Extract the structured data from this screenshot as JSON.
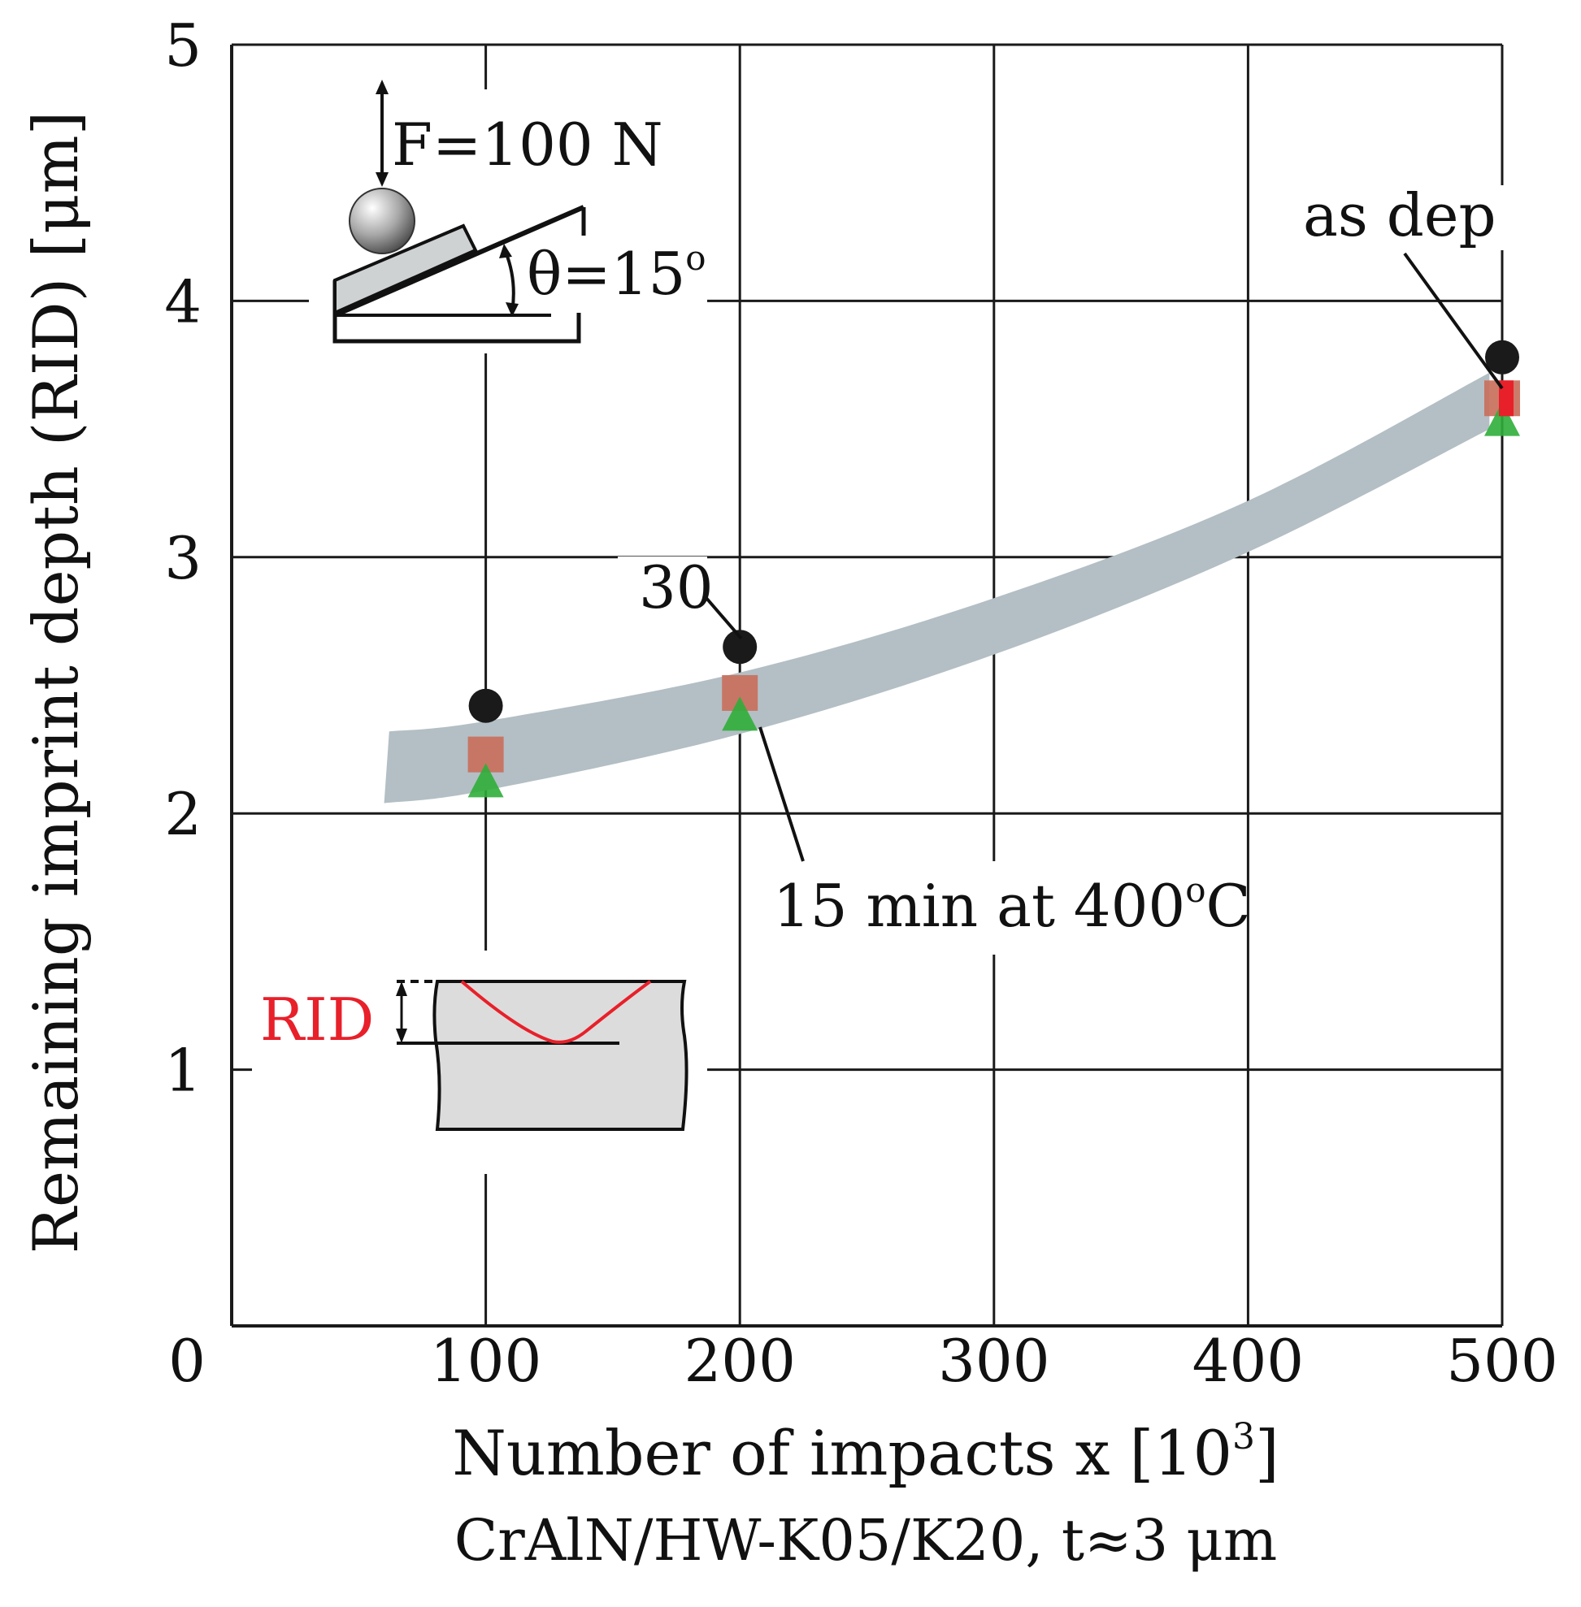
{
  "chart_data": {
    "type": "scatter",
    "title": "",
    "xlabel": "Number of impacts x [10",
    "xlabel_exponent": "3",
    "xlabel_close": "]",
    "ylabel": "Remaining imprint depth (RID) [μm]",
    "subtitle": "CrAlN/HW-K05/K20, t≈3 μm",
    "xlim": [
      0,
      500
    ],
    "ylim": [
      0,
      5
    ],
    "x_origin_label": "0",
    "x_ticks": [
      100,
      200,
      300,
      400,
      500
    ],
    "y_ticks": [
      1,
      2,
      3,
      4,
      5
    ],
    "grid": true,
    "series": [
      {
        "name": "as dep",
        "marker": "circle",
        "color": "#1a1a1a",
        "points": [
          {
            "x": 100,
            "y": 2.42
          },
          {
            "x": 200,
            "y": 2.65
          },
          {
            "x": 500,
            "y": 3.78
          }
        ]
      },
      {
        "name": "30",
        "marker": "square",
        "color": "#c9705c",
        "points": [
          {
            "x": 100,
            "y": 2.23
          },
          {
            "x": 200,
            "y": 2.47
          },
          {
            "x": 500,
            "y": 3.62
          }
        ]
      },
      {
        "name": "15 min at 400°C",
        "marker": "triangle",
        "color": "#2fae3a",
        "points": [
          {
            "x": 100,
            "y": 2.12
          },
          {
            "x": 200,
            "y": 2.38
          },
          {
            "x": 500,
            "y": 3.53
          }
        ]
      }
    ],
    "band": {
      "color": "#b3bfc4",
      "upper": [
        {
          "x": 62,
          "y": 2.32
        },
        {
          "x": 100,
          "y": 2.36
        },
        {
          "x": 200,
          "y": 2.55
        },
        {
          "x": 300,
          "y": 2.84
        },
        {
          "x": 400,
          "y": 3.22
        },
        {
          "x": 495,
          "y": 3.72
        }
      ],
      "lower": [
        {
          "x": 60,
          "y": 2.04
        },
        {
          "x": 100,
          "y": 2.09
        },
        {
          "x": 200,
          "y": 2.31
        },
        {
          "x": 300,
          "y": 2.62
        },
        {
          "x": 400,
          "y": 3.02
        },
        {
          "x": 495,
          "y": 3.5
        }
      ]
    },
    "annotations": {
      "as_dep": "as dep",
      "thirty": "30",
      "fifteen_prefix": "15 min at 400",
      "fifteen_degree": "o",
      "fifteen_suffix": "C"
    },
    "inset_top": {
      "force": "F=100 N",
      "angle_prefix": "θ=15",
      "angle_degree": "o"
    },
    "inset_bottom": {
      "label": "RID"
    }
  },
  "colors": {
    "grid": "#1a1a1a",
    "rid": "#e8202a",
    "sample": "#cfd2d3",
    "substrate": "#dcdcdc"
  }
}
